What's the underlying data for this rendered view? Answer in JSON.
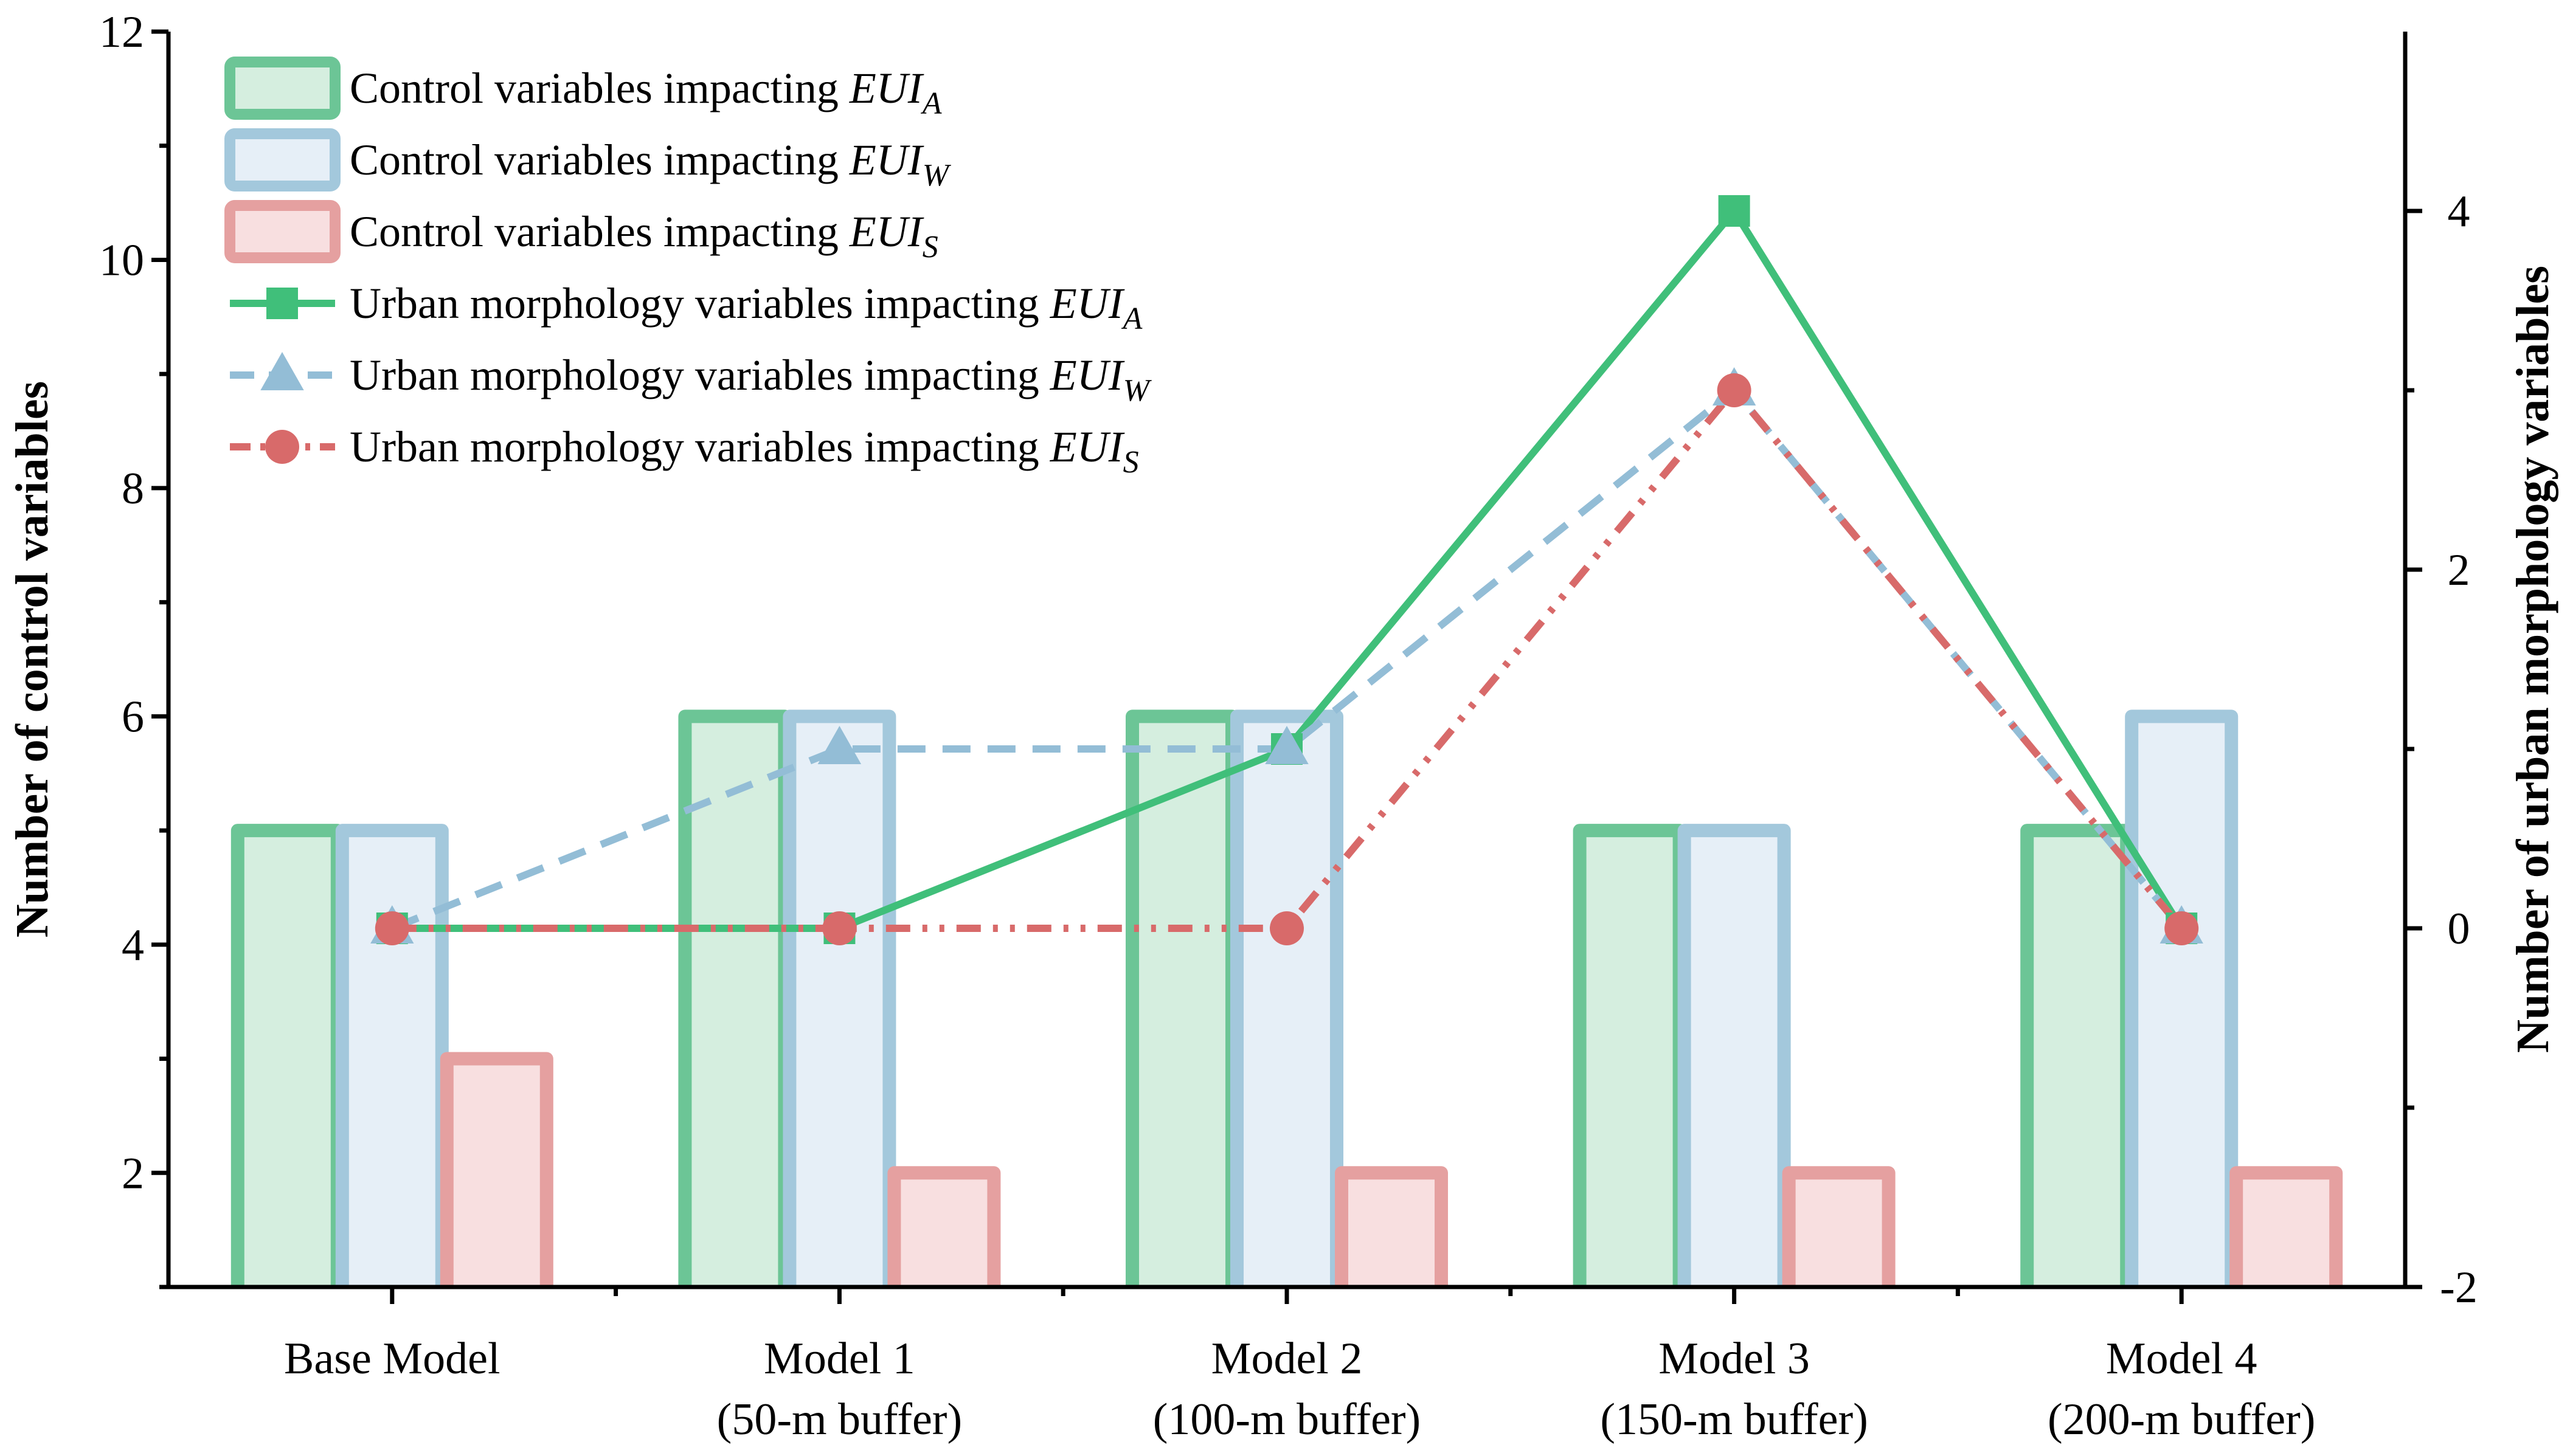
{
  "chart_data": {
    "type": "bar",
    "categories": [
      [
        "Base Model"
      ],
      [
        "Model 1",
        "(50-m  buffer)"
      ],
      [
        "Model 2",
        "(100-m  buffer)"
      ],
      [
        "Model 3",
        "(150-m  buffer)"
      ],
      [
        "Model 4",
        "(200-m  buffer)"
      ]
    ],
    "left_axis": {
      "label": "Number of control variables",
      "ylim": [
        1,
        12
      ],
      "ticks": [
        2,
        4,
        6,
        8,
        10,
        12
      ],
      "tick_labels": [
        "2",
        "4",
        "6",
        "8",
        "10",
        "12"
      ]
    },
    "right_axis": {
      "label": "Number of urban morphology variables",
      "ylim": [
        -2,
        5
      ],
      "ticks": [
        -2,
        0,
        2,
        4
      ],
      "tick_labels": [
        "-2",
        "0",
        "2",
        "4"
      ]
    },
    "bar_series": [
      {
        "name_prefix": "Control variables impacting ",
        "name_var": "EUI",
        "name_sub": "A",
        "values": [
          5,
          6,
          6,
          5,
          5
        ],
        "stroke": "#6cc596",
        "fill": "#d5eedf"
      },
      {
        "name_prefix": "Control variables impacting ",
        "name_var": "EUI",
        "name_sub": "W",
        "values": [
          5,
          6,
          6,
          5,
          6
        ],
        "stroke": "#a3c8dc",
        "fill": "#e6eff7"
      },
      {
        "name_prefix": "Control variables impacting ",
        "name_var": "EUI",
        "name_sub": "S",
        "values": [
          3,
          2,
          2,
          2,
          2
        ],
        "stroke": "#e5a0a0",
        "fill": "#f8dfe0"
      }
    ],
    "line_series": [
      {
        "name_prefix": "Urban morphology variables impacting ",
        "name_var": "EUI",
        "name_sub": "A",
        "values": [
          0,
          0,
          1,
          4,
          0
        ],
        "color": "#40bf7a",
        "dash": "solid",
        "marker": "square"
      },
      {
        "name_prefix": "Urban morphology variables impacting ",
        "name_var": "EUI",
        "name_sub": "W",
        "values": [
          0,
          1,
          1,
          3,
          0
        ],
        "color": "#93bdd6",
        "dash": "dash",
        "marker": "triangle"
      },
      {
        "name_prefix": "Urban morphology variables impacting ",
        "name_var": "EUI",
        "name_sub": "S",
        "values": [
          0,
          0,
          0,
          3,
          0
        ],
        "color": "#d86a6a",
        "dash": "dashdot",
        "marker": "circle"
      }
    ],
    "legend_position": "top-left",
    "grid": false
  }
}
